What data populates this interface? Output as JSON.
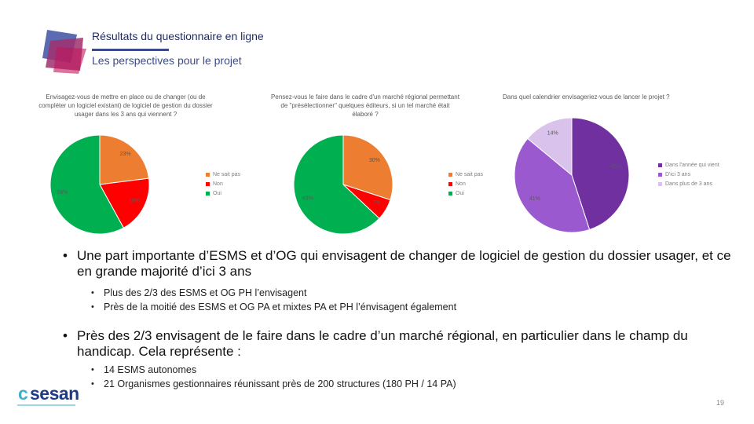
{
  "header": {
    "title": "Résultats du questionnaire en ligne",
    "subtitle": "Les perspectives pour le projet"
  },
  "chart_data": [
    {
      "type": "pie",
      "title": "Envisagez-vous de mettre en place ou de changer (ou de compléter un logiciel existant) de logiciel de gestion du dossier usager dans les 3 ans qui viennent ?",
      "categories": [
        "Ne sait pas",
        "Non",
        "Oui"
      ],
      "values": [
        23,
        19,
        58
      ],
      "labels": [
        "23%",
        "19%",
        "58%"
      ],
      "colors": [
        "#ed7d31",
        "#ff0000",
        "#00b050"
      ],
      "legend": "right"
    },
    {
      "type": "pie",
      "title": "Pensez-vous le faire dans le cadre d'un marché régional permettant de \"présélectionner\" quelques éditeurs, si un tel marché était élaboré ?",
      "categories": [
        "Ne sait pas",
        "Non",
        "Oui"
      ],
      "values": [
        30,
        7,
        63
      ],
      "labels": [
        "30%",
        "7%",
        "63%"
      ],
      "colors": [
        "#ed7d31",
        "#ff0000",
        "#00b050"
      ],
      "legend": "right"
    },
    {
      "type": "pie",
      "title": "Dans quel calendrier envisageriez-vous de lancer le projet ?",
      "categories": [
        "Dans l'année qui vient",
        "D'ici 3 ans",
        "Dans plus de 3 ans"
      ],
      "values": [
        45,
        41,
        14
      ],
      "labels": [
        "45%",
        "41%",
        "14%"
      ],
      "colors": [
        "#7030a0",
        "#9b59d0",
        "#d9c3ec"
      ],
      "legend": "right"
    }
  ],
  "bullets": [
    {
      "text": "Une part importante d’ESMS et d’OG qui envisagent de changer de logiciel de gestion du dossier usager, et ce en grande majorité d’ici 3 ans",
      "sub": [
        "Plus des 2/3 des ESMS et OG PH l’envisagent",
        "Près de la moitié des ESMS et OG PA et mixtes PA et PH l’énvisagent également"
      ]
    },
    {
      "text": "Près des 2/3 envisagent de le faire dans le cadre d’un marché régional, en particulier dans le champ du handicap. Cela représente :",
      "sub": [
        "14 ESMS autonomes",
        "21 Organismes gestionnaires réunissant près de 200 structures (180 PH / 14 PA)"
      ]
    }
  ],
  "footer": {
    "brand_c": "c",
    "brand_name": "sesan",
    "page_number": "19"
  }
}
